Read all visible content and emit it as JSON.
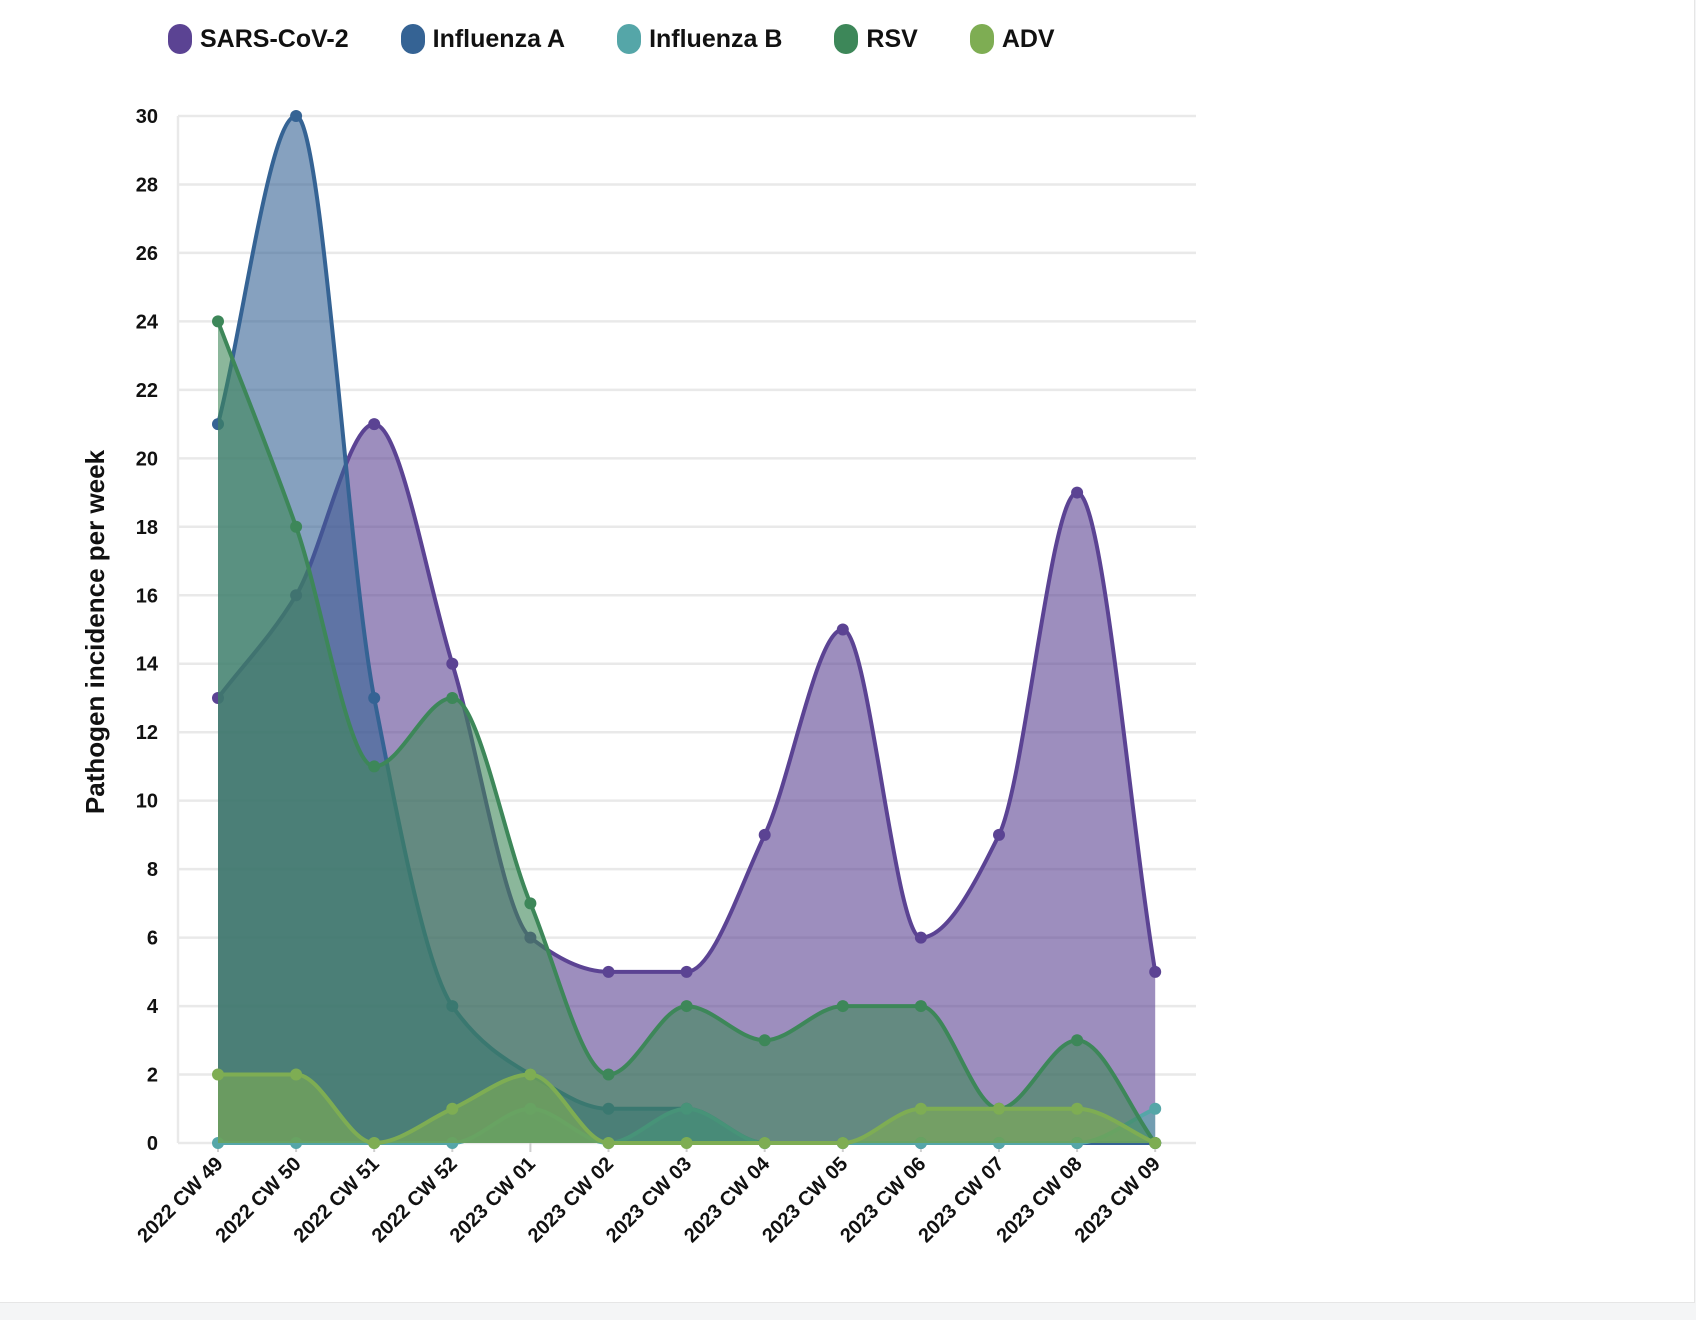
{
  "chart_data": {
    "type": "area",
    "title": "",
    "xlabel": "",
    "ylabel": "Pathogen incidence per week",
    "ylim": [
      0,
      30
    ],
    "yticks": [
      0,
      2,
      4,
      6,
      8,
      10,
      12,
      14,
      16,
      18,
      20,
      22,
      24,
      26,
      28,
      30
    ],
    "grid": true,
    "legend_position": "top-left",
    "categories": [
      "2022 CW 49",
      "2022 CW 50",
      "2022 CW 51",
      "2022 CW 52",
      "2023 CW 01",
      "2023 CW 02",
      "2023 CW 03",
      "2023 CW 04",
      "2023 CW 05",
      "2023 CW 06",
      "2023 CW 07",
      "2023 CW 08",
      "2023 CW 09"
    ],
    "series": [
      {
        "name": "SARS-CoV-2",
        "color": "#5b4393",
        "values": [
          13,
          16,
          21,
          14,
          6,
          5,
          5,
          9,
          15,
          6,
          9,
          19,
          5
        ]
      },
      {
        "name": "Influenza A",
        "color": "#356394",
        "values": [
          21,
          30,
          13,
          4,
          2,
          1,
          1,
          0,
          0,
          0,
          0,
          0,
          0
        ]
      },
      {
        "name": "Influenza B",
        "color": "#55a6a8",
        "values": [
          0,
          0,
          0,
          0,
          1,
          0,
          1,
          0,
          0,
          0,
          0,
          0,
          1
        ]
      },
      {
        "name": "RSV",
        "color": "#3d8759",
        "values": [
          24,
          18,
          11,
          13,
          7,
          2,
          4,
          3,
          4,
          4,
          1,
          3,
          0
        ]
      },
      {
        "name": "ADV",
        "color": "#7ead53",
        "values": [
          2,
          2,
          0,
          1,
          2,
          0,
          0,
          0,
          0,
          1,
          1,
          1,
          0
        ]
      }
    ]
  }
}
